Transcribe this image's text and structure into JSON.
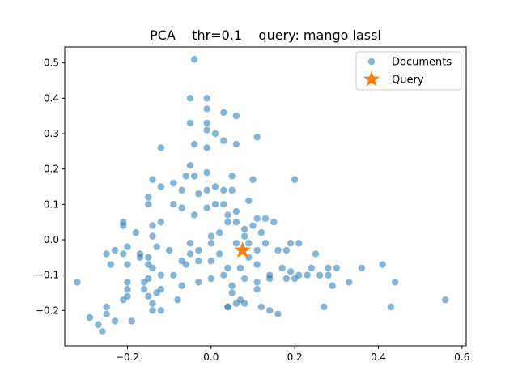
{
  "chart_data": {
    "type": "scatter",
    "title": "PCA    thr=0.1    query: mango lassi",
    "xlabel": "",
    "ylabel": "",
    "xlim": [
      -0.35,
      0.61
    ],
    "ylim": [
      -0.3,
      0.545
    ],
    "xticks": [
      -0.2,
      0.0,
      0.2,
      0.4,
      0.6
    ],
    "xtick_labels": [
      "−0.2",
      "0.0",
      "0.2",
      "0.4",
      "0.6"
    ],
    "yticks": [
      -0.2,
      -0.1,
      0.0,
      0.1,
      0.2,
      0.3,
      0.4,
      0.5
    ],
    "ytick_labels": [
      "−0.2",
      "−0.1",
      "0.0",
      "0.1",
      "0.2",
      "0.3",
      "0.4",
      "0.5"
    ],
    "grid": false,
    "legend_position": "top-right",
    "series": [
      {
        "name": "Documents",
        "color": "#1f77b4",
        "marker": "circle",
        "points": [
          [
            -0.04,
            0.51
          ],
          [
            -0.05,
            0.4
          ],
          [
            -0.01,
            0.4
          ],
          [
            -0.01,
            0.37
          ],
          [
            -0.05,
            0.33
          ],
          [
            0.03,
            0.36
          ],
          [
            0.06,
            0.35
          ],
          [
            -0.01,
            0.31
          ],
          [
            -0.01,
            0.33
          ],
          [
            0.01,
            0.3
          ],
          [
            -0.04,
            0.27
          ],
          [
            0.03,
            0.28
          ],
          [
            0.06,
            0.27
          ],
          [
            -0.01,
            0.26
          ],
          [
            -0.12,
            0.26
          ],
          [
            0.11,
            0.29
          ],
          [
            -0.05,
            0.21
          ],
          [
            -0.06,
            0.18
          ],
          [
            -0.04,
            0.18
          ],
          [
            -0.01,
            0.19
          ],
          [
            -0.14,
            0.17
          ],
          [
            -0.09,
            0.16
          ],
          [
            -0.12,
            0.15
          ],
          [
            -0.07,
            0.14
          ],
          [
            -0.03,
            0.13
          ],
          [
            -0.01,
            0.14
          ],
          [
            0.01,
            0.15
          ],
          [
            0.03,
            0.14
          ],
          [
            0.05,
            0.14
          ],
          [
            0.1,
            0.17
          ],
          [
            0.2,
            0.17
          ],
          [
            0.05,
            0.18
          ],
          [
            -0.15,
            0.12
          ],
          [
            -0.15,
            0.1
          ],
          [
            -0.09,
            0.1
          ],
          [
            -0.07,
            0.09
          ],
          [
            -0.04,
            0.07
          ],
          [
            -0.01,
            0.09
          ],
          [
            0.01,
            0.1
          ],
          [
            0.03,
            0.1
          ],
          [
            0.06,
            0.08
          ],
          [
            0.09,
            0.11
          ],
          [
            0.04,
            0.07
          ],
          [
            0.06,
            0.05
          ],
          [
            0.08,
            0.03
          ],
          [
            0.1,
            0.04
          ],
          [
            0.11,
            0.06
          ],
          [
            0.13,
            0.06
          ],
          [
            0.15,
            0.05
          ],
          [
            0.12,
            0.02
          ],
          [
            0.08,
            0.01
          ],
          [
            -0.21,
            0.05
          ],
          [
            -0.21,
            0.04
          ],
          [
            -0.14,
            0.04
          ],
          [
            -0.12,
            0.05
          ],
          [
            -0.18,
            0.02
          ],
          [
            -0.14,
            0.01
          ],
          [
            -0.05,
            -0.01
          ],
          [
            0.0,
            0.01
          ],
          [
            0.02,
            0.02
          ],
          [
            0.04,
            0.05
          ],
          [
            -0.25,
            -0.04
          ],
          [
            -0.23,
            -0.03
          ],
          [
            -0.21,
            -0.04
          ],
          [
            -0.2,
            -0.02
          ],
          [
            -0.17,
            -0.04
          ],
          [
            -0.15,
            -0.05
          ],
          [
            -0.13,
            -0.02
          ],
          [
            -0.1,
            -0.03
          ],
          [
            -0.07,
            -0.06
          ],
          [
            -0.05,
            -0.04
          ],
          [
            -0.03,
            -0.03
          ],
          [
            0.0,
            -0.01
          ],
          [
            0.02,
            -0.04
          ],
          [
            0.06,
            -0.01
          ],
          [
            0.09,
            -0.01
          ],
          [
            0.11,
            -0.03
          ],
          [
            0.13,
            -0.01
          ],
          [
            0.16,
            -0.03
          ],
          [
            0.19,
            -0.01
          ],
          [
            0.21,
            -0.01
          ],
          [
            0.18,
            -0.03
          ],
          [
            0.25,
            -0.04
          ],
          [
            -0.24,
            -0.07
          ],
          [
            -0.2,
            -0.07
          ],
          [
            -0.17,
            -0.05
          ],
          [
            -0.15,
            -0.07
          ],
          [
            -0.14,
            -0.08
          ],
          [
            -0.12,
            -0.1
          ],
          [
            -0.09,
            -0.1
          ],
          [
            -0.06,
            -0.07
          ],
          [
            -0.03,
            -0.06
          ],
          [
            0.0,
            -0.06
          ],
          [
            0.04,
            -0.08
          ],
          [
            0.07,
            -0.08
          ],
          [
            0.09,
            -0.05
          ],
          [
            0.11,
            -0.07
          ],
          [
            0.14,
            -0.1
          ],
          [
            0.17,
            -0.08
          ],
          [
            0.19,
            -0.09
          ],
          [
            0.21,
            -0.1
          ],
          [
            0.24,
            -0.08
          ],
          [
            0.26,
            -0.1
          ],
          [
            0.28,
            -0.08
          ],
          [
            0.3,
            -0.08
          ],
          [
            -0.32,
            -0.12
          ],
          [
            -0.2,
            -0.12
          ],
          [
            -0.16,
            -0.12
          ],
          [
            -0.15,
            -0.11
          ],
          [
            -0.12,
            -0.14
          ],
          [
            -0.07,
            -0.13
          ],
          [
            -0.03,
            -0.12
          ],
          [
            0.0,
            -0.11
          ],
          [
            0.03,
            -0.1
          ],
          [
            0.05,
            -0.13
          ],
          [
            0.08,
            -0.11
          ],
          [
            0.11,
            -0.12
          ],
          [
            0.14,
            -0.11
          ],
          [
            0.18,
            -0.11
          ],
          [
            0.2,
            -0.11
          ],
          [
            0.23,
            -0.1
          ],
          [
            0.28,
            -0.1
          ],
          [
            0.29,
            -0.13
          ],
          [
            0.33,
            -0.12
          ],
          [
            0.36,
            -0.08
          ],
          [
            0.41,
            -0.07
          ],
          [
            0.44,
            -0.12
          ],
          [
            -0.2,
            -0.14
          ],
          [
            -0.2,
            -0.16
          ],
          [
            -0.16,
            -0.14
          ],
          [
            -0.15,
            -0.16
          ],
          [
            -0.13,
            -0.15
          ],
          [
            -0.08,
            -0.17
          ],
          [
            0.05,
            -0.15
          ],
          [
            0.08,
            -0.18
          ],
          [
            0.11,
            -0.14
          ],
          [
            0.06,
            -0.18
          ],
          [
            -0.21,
            -0.17
          ],
          [
            -0.14,
            -0.18
          ],
          [
            -0.12,
            -0.2
          ],
          [
            -0.14,
            -0.2
          ],
          [
            -0.25,
            -0.19
          ],
          [
            -0.25,
            -0.21
          ],
          [
            -0.29,
            -0.22
          ],
          [
            -0.23,
            -0.23
          ],
          [
            -0.19,
            -0.23
          ],
          [
            -0.27,
            -0.24
          ],
          [
            -0.26,
            -0.26
          ],
          [
            0.04,
            -0.19
          ],
          [
            0.04,
            -0.19
          ],
          [
            0.07,
            -0.17
          ],
          [
            0.12,
            -0.19
          ],
          [
            0.14,
            -0.2
          ],
          [
            0.16,
            -0.21
          ],
          [
            0.27,
            -0.19
          ],
          [
            0.43,
            -0.19
          ],
          [
            0.56,
            -0.17
          ]
        ]
      },
      {
        "name": "Query",
        "color": "#ff7f0e",
        "marker": "star",
        "points": [
          [
            0.075,
            -0.03
          ]
        ]
      }
    ]
  }
}
